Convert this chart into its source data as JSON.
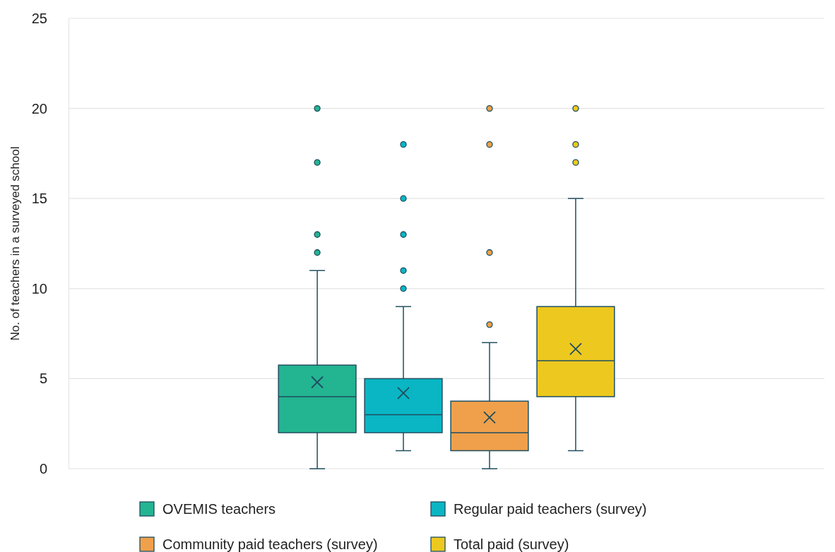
{
  "chart_data": {
    "type": "box",
    "ylabel": "No. of teachers in a surveyed school",
    "categories": [
      null
    ],
    "ylim": [
      0,
      25
    ],
    "yticks": [
      0,
      5,
      10,
      15,
      20,
      25
    ],
    "grid": "y",
    "legend": "bottom",
    "tick_labels": "y",
    "series": [
      {
        "name": "OVEMIS teachers",
        "color": "#23b491",
        "boxes": [
          {
            "low": 0,
            "q1": 2,
            "median": 4,
            "q3": 5.75,
            "high": 11,
            "mean": 4.8,
            "outliers": [
              12,
              13,
              17,
              20
            ]
          }
        ]
      },
      {
        "name": "Regular paid teachers (survey)",
        "color": "#0ab6c4",
        "boxes": [
          {
            "low": 1,
            "q1": 2,
            "median": 3,
            "q3": 5,
            "high": 9,
            "mean": 4.2,
            "outliers": [
              10,
              11,
              13,
              15,
              18
            ]
          }
        ]
      },
      {
        "name": "Community paid teachers (survey)",
        "color": "#f0a04b",
        "boxes": [
          {
            "low": 0,
            "q1": 1,
            "median": 2,
            "q3": 3.75,
            "high": 7,
            "mean": 2.85,
            "outliers": [
              8,
              12,
              18,
              20
            ]
          }
        ]
      },
      {
        "name": "Total paid (survey)",
        "color": "#edc91f",
        "boxes": [
          {
            "low": 1,
            "q1": 4,
            "median": 6,
            "q3": 9,
            "high": 15,
            "mean": 6.65,
            "outliers": [
              17,
              18,
              20
            ]
          }
        ]
      }
    ]
  }
}
